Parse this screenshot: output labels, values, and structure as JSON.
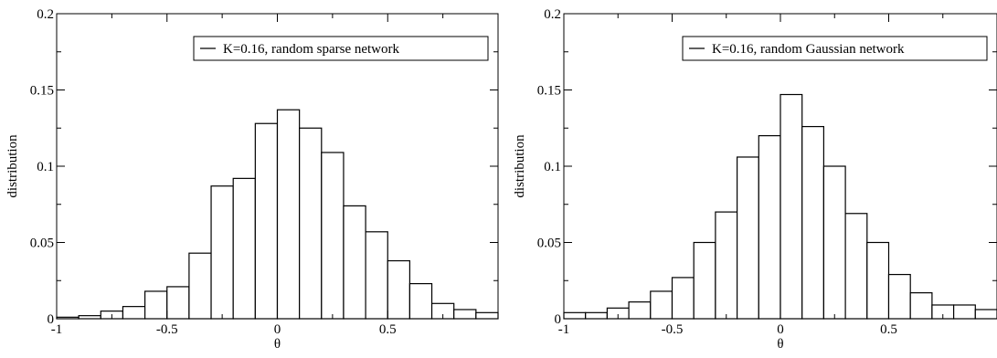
{
  "chart_data": [
    {
      "type": "bar",
      "xlabel": "θ",
      "ylabel": "distribution",
      "xlim": [
        -1,
        1
      ],
      "ylim": [
        0,
        0.2
      ],
      "xticks": [
        -1,
        -0.5,
        0,
        0.5
      ],
      "xtick_labels": [
        "-1",
        "-0.5",
        "0",
        "0.5"
      ],
      "yticks": [
        0,
        0.05,
        0.1,
        0.15,
        0.2
      ],
      "ytick_labels": [
        "0",
        "0.05",
        "0.1",
        "0.15",
        "0.2"
      ],
      "grid": false,
      "legend_position": "top-right",
      "series": [
        {
          "name": "K=0.16,  random sparse network",
          "bin_width": 0.1,
          "bin_starts": [
            -1.0,
            -0.9,
            -0.8,
            -0.7,
            -0.6,
            -0.5,
            -0.4,
            -0.3,
            -0.2,
            -0.1,
            0.0,
            0.1,
            0.2,
            0.3,
            0.4,
            0.5,
            0.6,
            0.7,
            0.8,
            0.9
          ],
          "values": [
            0.001,
            0.002,
            0.005,
            0.008,
            0.018,
            0.021,
            0.043,
            0.087,
            0.092,
            0.128,
            0.137,
            0.125,
            0.109,
            0.074,
            0.057,
            0.038,
            0.023,
            0.01,
            0.006,
            0.004
          ]
        }
      ]
    },
    {
      "type": "bar",
      "xlabel": "θ",
      "ylabel": "distribution",
      "xlim": [
        -1,
        1
      ],
      "ylim": [
        0,
        0.2
      ],
      "xticks": [
        -1,
        -0.5,
        0,
        0.5
      ],
      "xtick_labels": [
        "-1",
        "-0.5",
        "0",
        "0.5"
      ],
      "yticks": [
        0,
        0.05,
        0.1,
        0.15,
        0.2
      ],
      "ytick_labels": [
        "0",
        "0.05",
        "0.1",
        "0.15",
        "0.2"
      ],
      "grid": false,
      "legend_position": "top-right",
      "series": [
        {
          "name": "K=0.16, random Gaussian network",
          "bin_width": 0.1,
          "bin_starts": [
            -1.0,
            -0.9,
            -0.8,
            -0.7,
            -0.6,
            -0.5,
            -0.4,
            -0.3,
            -0.2,
            -0.1,
            0.0,
            0.1,
            0.2,
            0.3,
            0.4,
            0.5,
            0.6,
            0.7,
            0.8,
            0.9
          ],
          "values": [
            0.004,
            0.004,
            0.007,
            0.011,
            0.018,
            0.027,
            0.05,
            0.07,
            0.106,
            0.12,
            0.147,
            0.126,
            0.1,
            0.069,
            0.05,
            0.029,
            0.017,
            0.009,
            0.009,
            0.006
          ]
        }
      ]
    }
  ]
}
